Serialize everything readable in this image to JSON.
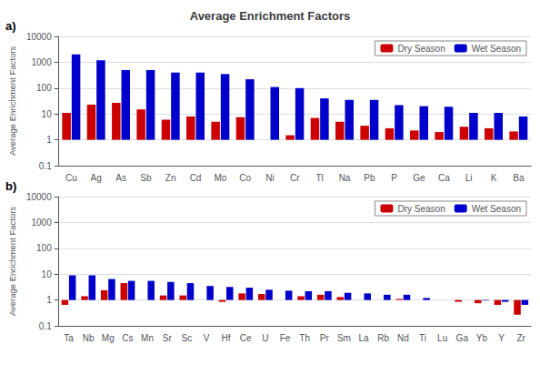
{
  "chart_data": [
    {
      "type": "bar",
      "title": "Average Enrichment Factors",
      "annotations": [
        "a)"
      ],
      "ylabel": "Average Enrichment Factors",
      "categories": [
        "Cu",
        "Ag",
        "As",
        "Sb",
        "Zn",
        "Cd",
        "Mo",
        "Co",
        "Ni",
        "Cr",
        "Tl",
        "Na",
        "Pb",
        "P",
        "Ge",
        "Ca",
        "Li",
        "K",
        "Ba"
      ],
      "series": [
        {
          "name": "Dry Season",
          "color": "#cc0000",
          "values": [
            11,
            23,
            27,
            15,
            6,
            8,
            5,
            7.5,
            1.0,
            1.5,
            7,
            5,
            3.5,
            2.8,
            2.3,
            2.0,
            3.2,
            2.8,
            2.1
          ]
        },
        {
          "name": "Wet Season",
          "color": "#0000cc",
          "values": [
            2000,
            1200,
            500,
            500,
            400,
            400,
            350,
            220,
            110,
            100,
            40,
            35,
            35,
            22,
            20,
            19,
            11,
            11,
            8
          ]
        }
      ],
      "ylim": [
        0.1,
        10000
      ],
      "yticks": [
        0.1,
        1,
        10,
        100,
        1000,
        10000
      ],
      "log": "y",
      "grid": true,
      "legend": "upper right"
    },
    {
      "type": "bar",
      "annotations": [
        "b)"
      ],
      "ylabel": "Average Enrichment Factors",
      "categories": [
        "Ta",
        "Nb",
        "Mg",
        "Cs",
        "Mn",
        "Sr",
        "Sc",
        "V",
        "Hf",
        "Ce",
        "U",
        "Fe",
        "Th",
        "Pr",
        "Sm",
        "La",
        "Rb",
        "Nd",
        "Ti",
        "Lu",
        "Ga",
        "Yb",
        "Y",
        "Zr"
      ],
      "series": [
        {
          "name": "Dry Season",
          "color": "#cc0000",
          "values": [
            0.65,
            1.4,
            2.4,
            4.5,
            1.0,
            1.5,
            1.5,
            1.0,
            0.85,
            1.8,
            1.7,
            1.0,
            1.4,
            1.6,
            1.3,
            1.0,
            1.0,
            1.1,
            1.0,
            1.0,
            0.85,
            0.75,
            0.65,
            0.27
          ]
        },
        {
          "name": "Wet Season",
          "color": "#0000cc",
          "values": [
            9,
            9,
            6.5,
            5.5,
            5.5,
            5,
            4.5,
            3.5,
            3.2,
            3.0,
            2.5,
            2.3,
            2.2,
            2.2,
            1.9,
            1.8,
            1.6,
            1.6,
            1.2,
            1.0,
            1.0,
            0.95,
            0.85,
            0.65
          ]
        }
      ],
      "ylim": [
        0.1,
        10000
      ],
      "yticks": [
        0.1,
        1,
        10,
        100,
        1000,
        10000
      ],
      "log": "y",
      "grid": true,
      "legend": "upper right"
    }
  ]
}
